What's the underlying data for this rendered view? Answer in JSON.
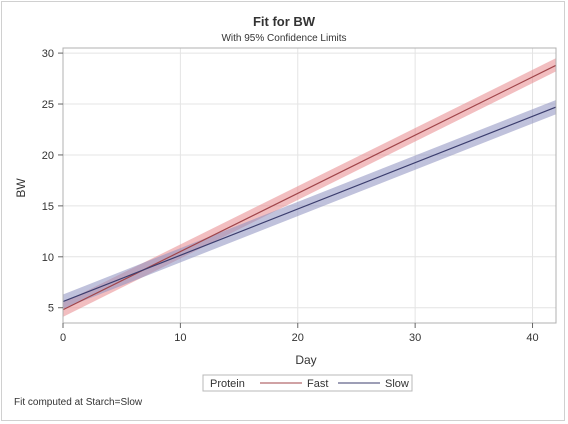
{
  "chart_data": {
    "type": "line",
    "title": "Fit for BW",
    "subtitle": "With 95% Confidence Limits",
    "xlabel": "Day",
    "ylabel": "BW",
    "xlim": [
      0,
      42
    ],
    "ylim": [
      3.5,
      30.5
    ],
    "xticks": [
      0,
      10,
      20,
      30,
      40
    ],
    "yticks": [
      5,
      10,
      15,
      20,
      25,
      30
    ],
    "grid": true,
    "legend_title": "Protein",
    "legend_position": "bottom",
    "series": [
      {
        "name": "Fast",
        "color": "#a0454a",
        "band_color": "#e8888c",
        "x": [
          0,
          42
        ],
        "y": [
          4.8,
          28.8
        ],
        "lower": [
          4.1,
          28.2
        ],
        "upper": [
          5.5,
          29.5
        ]
      },
      {
        "name": "Slow",
        "color": "#3b3d6e",
        "band_color": "#8c8fc0",
        "x": [
          0,
          42
        ],
        "y": [
          5.6,
          24.7
        ],
        "lower": [
          4.9,
          24.0
        ],
        "upper": [
          6.3,
          25.4
        ]
      }
    ],
    "footnote": "Fit computed at Starch=Slow"
  }
}
